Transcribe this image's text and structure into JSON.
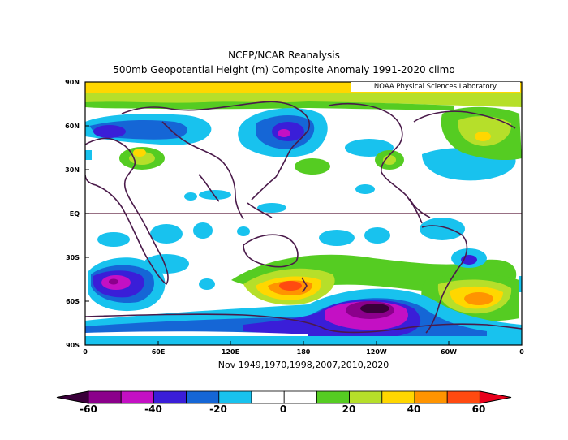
{
  "titles": {
    "line1": "NCEP/NCAR Reanalysis",
    "line2": "500mb Geopotential Height (m) Composite Anomaly 1991-2020 climo"
  },
  "credit": "NOAA Physical Sciences Laboratory",
  "latitude_labels": [
    "90N",
    "60N",
    "30N",
    "EQ",
    "30S",
    "60S",
    "90S"
  ],
  "longitude_labels": [
    "0",
    "60E",
    "120E",
    "180",
    "120W",
    "60W",
    "0"
  ],
  "caption": "Nov 1949,1970,1998,2007,2010,2020",
  "colorbar": {
    "labels": [
      "-60",
      "-40",
      "-20",
      "0",
      "20",
      "40",
      "60"
    ],
    "colors": [
      "#8b008b",
      "#c410c4",
      "#3a1ed8",
      "#1566d6",
      "#18c2ee",
      "#ffffff",
      "#ffffff",
      "#55cc22",
      "#b6df2a",
      "#ffd700",
      "#ff9400",
      "#ff4a10"
    ],
    "under_color": "#3a003a",
    "over_color": "#e8001c"
  },
  "map_colors": {
    "land_outline": "#4a1a4a",
    "equator": "#5a1a3a"
  }
}
